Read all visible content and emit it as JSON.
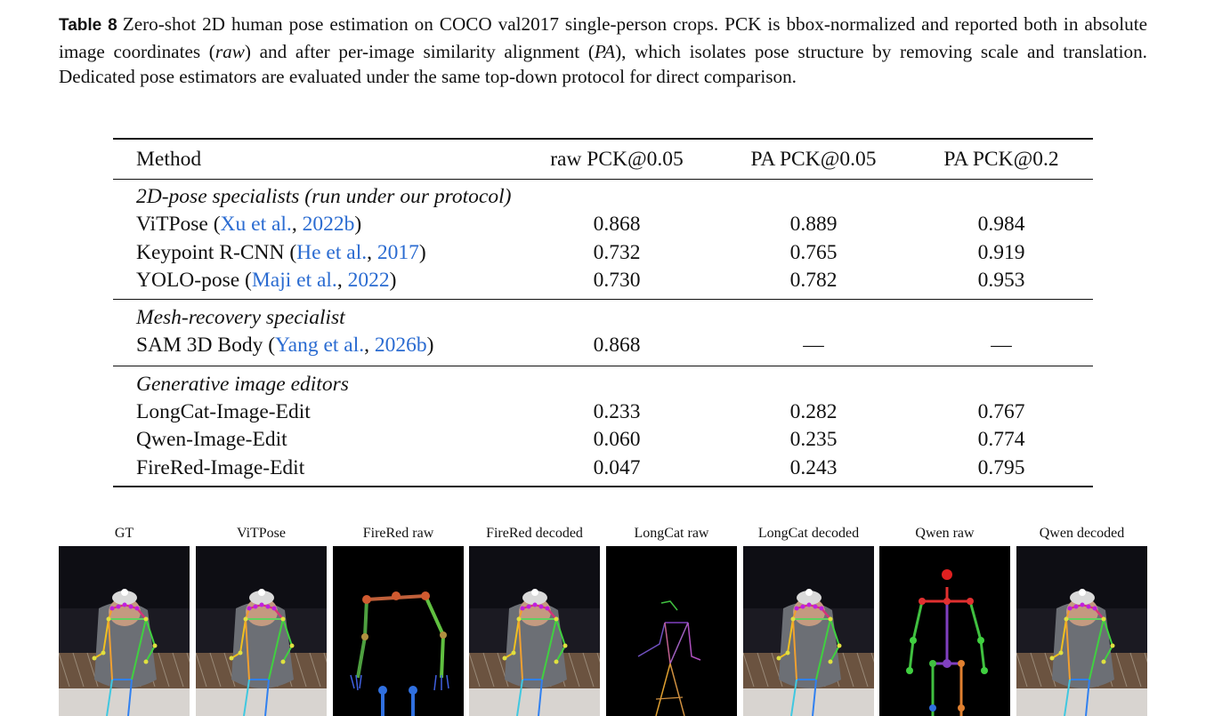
{
  "caption": {
    "label": "Table 8",
    "text_1": "Zero-shot 2D human pose estimation on COCO val2017 single-person crops. PCK is bbox-normalized and reported both in absolute image coordinates (",
    "raw_em": "raw",
    "text_2": ") and after per-image similarity alignment (",
    "pa_em": "PA",
    "text_3": "), which isolates pose structure by removing scale and translation. Dedicated pose estimators are evaluated under the same top-down protocol for direct comparison."
  },
  "table": {
    "headers": [
      "Method",
      "raw PCK@0.05",
      "PA PCK@0.05",
      "PA PCK@0.2"
    ],
    "groups": [
      {
        "title": "2D-pose specialists (run under our protocol)",
        "rows": [
          {
            "method": "ViTPose",
            "cite_author": "Xu et al.",
            "cite_year": "2022b",
            "values": [
              "0.868",
              "0.889",
              "0.984"
            ]
          },
          {
            "method": "Keypoint R-CNN",
            "cite_author": "He et al.",
            "cite_year": "2017",
            "values": [
              "0.732",
              "0.765",
              "0.919"
            ]
          },
          {
            "method": "YOLO-pose",
            "cite_author": "Maji et al.",
            "cite_year": "2022",
            "values": [
              "0.730",
              "0.782",
              "0.953"
            ]
          }
        ]
      },
      {
        "title": "Mesh-recovery specialist",
        "rows": [
          {
            "method": "SAM 3D Body",
            "cite_author": "Yang et al.",
            "cite_year": "2026b",
            "values": [
              "0.868",
              "—",
              "—"
            ]
          }
        ]
      },
      {
        "title": "Generative image editors",
        "rows": [
          {
            "method": "LongCat-Image-Edit",
            "values": [
              "0.233",
              "0.282",
              "0.767"
            ]
          },
          {
            "method": "Qwen-Image-Edit",
            "values": [
              "0.060",
              "0.235",
              "0.774"
            ]
          },
          {
            "method": "FireRed-Image-Edit",
            "values": [
              "0.047",
              "0.243",
              "0.795"
            ]
          }
        ]
      }
    ]
  },
  "figure": {
    "panels": [
      {
        "title": "GT",
        "kind": "photo"
      },
      {
        "title": "ViTPose",
        "kind": "photo"
      },
      {
        "title": "FireRed raw",
        "kind": "skeleton-firered"
      },
      {
        "title": "FireRed decoded",
        "kind": "photo"
      },
      {
        "title": "LongCat raw",
        "kind": "skeleton-longcat"
      },
      {
        "title": "LongCat decoded",
        "kind": "photo"
      },
      {
        "title": "Qwen raw",
        "kind": "skeleton-qwen"
      },
      {
        "title": "Qwen decoded",
        "kind": "photo"
      }
    ],
    "colors": {
      "cite_link": "#2a6bd1",
      "skeleton_bg": "#000000",
      "photo_bg": "#1b1a22"
    }
  }
}
